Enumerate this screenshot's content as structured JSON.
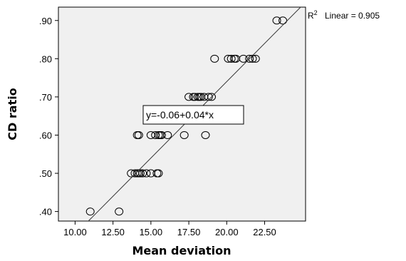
{
  "chart_data": {
    "type": "scatter",
    "xlabel": "Mean deviation",
    "ylabel": "CD ratio",
    "xlim": [
      8.9,
      25.2
    ],
    "ylim": [
      0.375,
      0.935
    ],
    "x_ticks": [
      10,
      12.5,
      15,
      17.5,
      20,
      22.5
    ],
    "x_tick_labels": [
      "10.00",
      "12.50",
      "15.00",
      "17.50",
      "20.00",
      "22.50"
    ],
    "y_ticks": [
      0.4,
      0.5,
      0.6,
      0.7,
      0.8,
      0.9
    ],
    "y_tick_labels": [
      ".40",
      ".50",
      ".60",
      ".70",
      ".80",
      ".90"
    ],
    "grid": false,
    "plot_background": "#f0f0f0",
    "fit_line": {
      "intercept": -0.06,
      "slope": 0.04,
      "color": "#333333"
    },
    "equation_label": "y=-0.06+0.04*x",
    "r2_label": "Linear = 0.905",
    "points": [
      {
        "x": 11.0,
        "y": 0.4
      },
      {
        "x": 12.9,
        "y": 0.4
      },
      {
        "x": 13.7,
        "y": 0.5
      },
      {
        "x": 13.95,
        "y": 0.5
      },
      {
        "x": 14.1,
        "y": 0.5
      },
      {
        "x": 14.2,
        "y": 0.5
      },
      {
        "x": 14.3,
        "y": 0.5
      },
      {
        "x": 14.45,
        "y": 0.5
      },
      {
        "x": 14.7,
        "y": 0.5
      },
      {
        "x": 15.0,
        "y": 0.5
      },
      {
        "x": 15.4,
        "y": 0.5
      },
      {
        "x": 15.5,
        "y": 0.5
      },
      {
        "x": 14.1,
        "y": 0.6
      },
      {
        "x": 14.2,
        "y": 0.6
      },
      {
        "x": 15.0,
        "y": 0.6
      },
      {
        "x": 15.3,
        "y": 0.6
      },
      {
        "x": 15.5,
        "y": 0.6
      },
      {
        "x": 15.6,
        "y": 0.6
      },
      {
        "x": 15.7,
        "y": 0.6
      },
      {
        "x": 16.1,
        "y": 0.6
      },
      {
        "x": 17.2,
        "y": 0.6
      },
      {
        "x": 18.6,
        "y": 0.6
      },
      {
        "x": 17.5,
        "y": 0.7
      },
      {
        "x": 17.8,
        "y": 0.7
      },
      {
        "x": 17.9,
        "y": 0.7
      },
      {
        "x": 18.1,
        "y": 0.7
      },
      {
        "x": 18.2,
        "y": 0.7
      },
      {
        "x": 18.3,
        "y": 0.7
      },
      {
        "x": 18.5,
        "y": 0.7
      },
      {
        "x": 18.8,
        "y": 0.7
      },
      {
        "x": 19.0,
        "y": 0.7
      },
      {
        "x": 19.2,
        "y": 0.8
      },
      {
        "x": 20.1,
        "y": 0.8
      },
      {
        "x": 20.3,
        "y": 0.8
      },
      {
        "x": 20.5,
        "y": 0.8
      },
      {
        "x": 20.6,
        "y": 0.8
      },
      {
        "x": 21.1,
        "y": 0.8
      },
      {
        "x": 21.5,
        "y": 0.8
      },
      {
        "x": 21.7,
        "y": 0.8
      },
      {
        "x": 21.9,
        "y": 0.8
      },
      {
        "x": 23.3,
        "y": 0.9
      },
      {
        "x": 23.7,
        "y": 0.9
      }
    ]
  }
}
